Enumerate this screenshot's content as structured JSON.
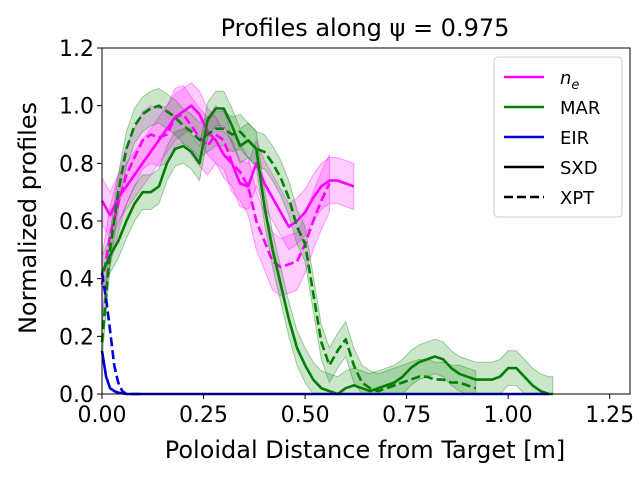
{
  "chart_data": {
    "type": "line",
    "title": "Profiles along ψ = 0.975",
    "xlabel": "Poloidal Distance from Target [m]",
    "ylabel": "Normalized profiles",
    "xlim": [
      0,
      1.3
    ],
    "ylim": [
      0,
      1.2
    ],
    "x_ticks": [
      0.0,
      0.25,
      0.5,
      0.75,
      1.0,
      1.25
    ],
    "x_tick_labels": [
      "0.00",
      "0.25",
      "0.50",
      "0.75",
      "1.00",
      "1.25"
    ],
    "y_ticks": [
      0.0,
      0.2,
      0.4,
      0.6,
      0.8,
      1.0,
      1.2
    ],
    "y_tick_labels": [
      "0.0",
      "0.2",
      "0.4",
      "0.6",
      "0.8",
      "1.0",
      "1.2"
    ],
    "grid": false,
    "legend_position": "top-right",
    "legend": [
      {
        "label": "n_e",
        "color": "#ff00ff",
        "style": "solid"
      },
      {
        "label": "MAR",
        "color": "#008000",
        "style": "solid"
      },
      {
        "label": "EIR",
        "color": "#0000dd",
        "style": "solid"
      },
      {
        "label": "SXD",
        "color": "#000000",
        "style": "solid"
      },
      {
        "label": "XPT",
        "color": "#000000",
        "style": "dashed"
      }
    ],
    "series": [
      {
        "name": "n_e SXD",
        "color": "#ff00ff",
        "style": "solid",
        "band_half_width": 0.08,
        "x": [
          0.0,
          0.02,
          0.04,
          0.06,
          0.08,
          0.1,
          0.12,
          0.14,
          0.16,
          0.18,
          0.2,
          0.22,
          0.24,
          0.26,
          0.28,
          0.3,
          0.32,
          0.34,
          0.36,
          0.38,
          0.4,
          0.42,
          0.44,
          0.46,
          0.48,
          0.5,
          0.52,
          0.54,
          0.56,
          0.58,
          0.6,
          0.62
        ],
        "y": [
          0.67,
          0.62,
          0.68,
          0.72,
          0.76,
          0.8,
          0.84,
          0.88,
          0.92,
          0.96,
          0.98,
          1.0,
          0.97,
          0.91,
          0.88,
          0.83,
          0.8,
          0.73,
          0.72,
          0.8,
          0.73,
          0.68,
          0.63,
          0.58,
          0.6,
          0.63,
          0.68,
          0.72,
          0.74,
          0.74,
          0.73,
          0.72
        ]
      },
      {
        "name": "n_e XPT",
        "color": "#ff00ff",
        "style": "dashed",
        "band_half_width": 0.1,
        "x": [
          0.0,
          0.02,
          0.04,
          0.06,
          0.08,
          0.1,
          0.12,
          0.14,
          0.16,
          0.18,
          0.2,
          0.22,
          0.24,
          0.26,
          0.28,
          0.3,
          0.32,
          0.34,
          0.36,
          0.38,
          0.4,
          0.42,
          0.44,
          0.46,
          0.48,
          0.5,
          0.52,
          0.54,
          0.56
        ],
        "y": [
          0.38,
          0.55,
          0.66,
          0.76,
          0.82,
          0.88,
          0.9,
          0.89,
          0.9,
          0.96,
          0.97,
          0.93,
          0.89,
          0.86,
          0.9,
          0.88,
          0.8,
          0.77,
          0.72,
          0.6,
          0.53,
          0.46,
          0.44,
          0.45,
          0.46,
          0.52,
          0.6,
          0.67,
          0.73
        ]
      },
      {
        "name": "MAR SXD",
        "color": "#008000",
        "style": "solid",
        "band_half_width": 0.06,
        "x": [
          0.0,
          0.02,
          0.04,
          0.06,
          0.08,
          0.1,
          0.12,
          0.14,
          0.16,
          0.18,
          0.2,
          0.22,
          0.24,
          0.26,
          0.28,
          0.3,
          0.32,
          0.34,
          0.36,
          0.38,
          0.4,
          0.42,
          0.44,
          0.46,
          0.48,
          0.5,
          0.52,
          0.54,
          0.56,
          0.58,
          0.6,
          0.62,
          0.64,
          0.66,
          0.68,
          0.7,
          0.72,
          0.74,
          0.76,
          0.78,
          0.8,
          0.82,
          0.84,
          0.86,
          0.88,
          0.9,
          0.92,
          0.94,
          0.96,
          0.98,
          1.0,
          1.02,
          1.04,
          1.06,
          1.08,
          1.1,
          1.11
        ],
        "y": [
          0.42,
          0.48,
          0.53,
          0.6,
          0.66,
          0.7,
          0.7,
          0.72,
          0.8,
          0.85,
          0.86,
          0.84,
          0.8,
          0.95,
          0.99,
          0.99,
          0.93,
          0.86,
          0.88,
          0.85,
          0.65,
          0.5,
          0.38,
          0.26,
          0.16,
          0.1,
          0.05,
          0.02,
          0.01,
          0.0,
          0.02,
          0.03,
          0.02,
          0.01,
          0.02,
          0.03,
          0.04,
          0.06,
          0.09,
          0.11,
          0.12,
          0.13,
          0.12,
          0.09,
          0.07,
          0.06,
          0.05,
          0.05,
          0.05,
          0.06,
          0.09,
          0.09,
          0.06,
          0.03,
          0.01,
          0.0,
          0.0
        ]
      },
      {
        "name": "MAR XPT",
        "color": "#008000",
        "style": "dashed",
        "band_half_width": 0.06,
        "x": [
          0.0,
          0.02,
          0.04,
          0.06,
          0.08,
          0.1,
          0.12,
          0.14,
          0.16,
          0.18,
          0.2,
          0.22,
          0.24,
          0.26,
          0.28,
          0.3,
          0.32,
          0.34,
          0.36,
          0.38,
          0.4,
          0.42,
          0.44,
          0.46,
          0.48,
          0.5,
          0.52,
          0.54,
          0.56,
          0.58,
          0.6,
          0.62,
          0.64,
          0.66,
          0.68,
          0.7,
          0.72,
          0.74,
          0.76,
          0.78,
          0.8,
          0.82,
          0.84,
          0.86,
          0.88,
          0.9,
          0.92
        ],
        "y": [
          0.18,
          0.5,
          0.7,
          0.85,
          0.93,
          0.97,
          0.99,
          1.0,
          0.98,
          0.96,
          0.93,
          0.91,
          0.88,
          0.9,
          0.92,
          0.92,
          0.9,
          0.91,
          0.88,
          0.85,
          0.84,
          0.8,
          0.75,
          0.68,
          0.58,
          0.52,
          0.35,
          0.18,
          0.1,
          0.15,
          0.19,
          0.1,
          0.04,
          0.02,
          0.01,
          0.02,
          0.03,
          0.04,
          0.05,
          0.06,
          0.06,
          0.05,
          0.05,
          0.04,
          0.04,
          0.03,
          0.02
        ]
      },
      {
        "name": "EIR SXD",
        "color": "#0000dd",
        "style": "solid",
        "band_half_width": 0.0,
        "x": [
          0.0,
          0.01,
          0.02,
          0.03,
          0.04,
          0.05,
          0.06,
          0.08,
          0.1,
          0.2,
          0.4,
          0.6,
          0.8,
          1.0,
          1.1
        ],
        "y": [
          0.15,
          0.06,
          0.02,
          0.01,
          0.005,
          0.002,
          0.0,
          0.0,
          0.0,
          0.0,
          0.0,
          0.0,
          0.0,
          0.0,
          0.0
        ]
      },
      {
        "name": "EIR XPT",
        "color": "#0000dd",
        "style": "dashed",
        "band_half_width": 0.0,
        "x": [
          0.0,
          0.01,
          0.02,
          0.03,
          0.04,
          0.05,
          0.06,
          0.08,
          0.1
        ],
        "y": [
          0.42,
          0.33,
          0.22,
          0.1,
          0.04,
          0.01,
          0.0,
          0.0,
          0.0
        ]
      }
    ]
  }
}
